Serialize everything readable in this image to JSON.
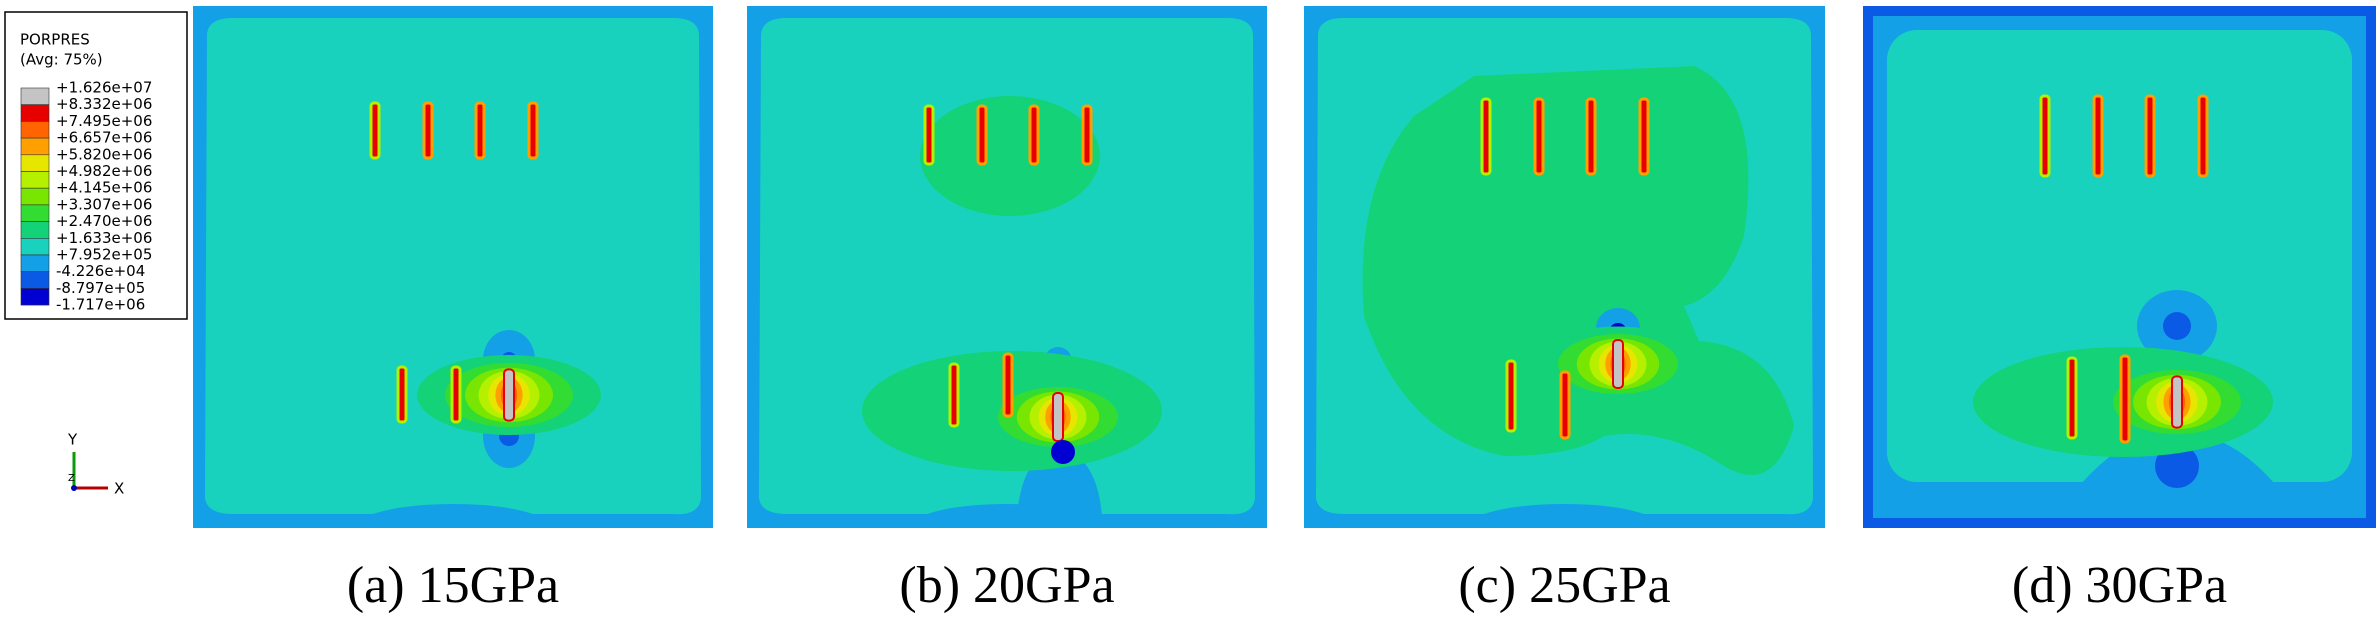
{
  "legend": {
    "title": "PORPRES",
    "subtitle": "(Avg: 75%)",
    "labels": [
      "+1.626e+07",
      "+8.332e+06",
      "+7.495e+06",
      "+6.657e+06",
      "+5.820e+06",
      "+4.982e+06",
      "+4.145e+06",
      "+3.307e+06",
      "+2.470e+06",
      "+1.633e+06",
      "+7.952e+05",
      "-4.226e+04",
      "-8.797e+05",
      "-1.717e+06"
    ],
    "colors": [
      "#c4c4c4",
      "#e60000",
      "#ff6400",
      "#ffa000",
      "#e6e600",
      "#b4f000",
      "#78e600",
      "#32dc32",
      "#14d278",
      "#19d2be",
      "#14a0e6",
      "#0a5ae6",
      "#0000d2"
    ]
  },
  "triad": {
    "y": "Y",
    "x": "X",
    "z": "Z"
  },
  "panels": [
    {
      "caption": "(a) 15GPa"
    },
    {
      "caption": "(b) 20GPa"
    },
    {
      "caption": "(c) 25GPa"
    },
    {
      "caption": "(d) 30GPa"
    }
  ]
}
